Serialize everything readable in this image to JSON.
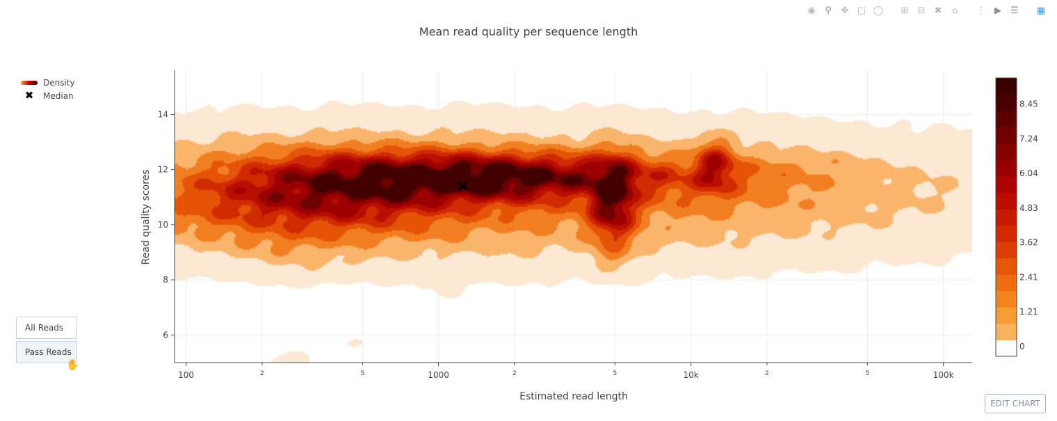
{
  "title": "Mean read quality per sequence length",
  "modebar": {
    "icons": [
      "camera-icon",
      "zoom-icon",
      "pan-icon",
      "box-select-icon",
      "lasso-icon",
      "zoom-in-icon",
      "zoom-out-icon",
      "autoscale-icon",
      "reset-axes-icon",
      "spike-lines-icon",
      "hover-closest-icon",
      "hover-compare-icon",
      "plotly-logo-icon"
    ]
  },
  "legend": {
    "density_label": "Density",
    "median_label": "Median"
  },
  "buttons": {
    "all_reads": "All Reads",
    "pass_reads": "Pass Reads",
    "active": "Pass Reads"
  },
  "edit_chart_label": "EDIT CHART",
  "chart_data": {
    "type": "contour-density",
    "title": "Mean read quality per sequence length",
    "xlabel": "Estimated read length",
    "ylabel": "Read quality scores",
    "x_scale": "log",
    "xlim": [
      90,
      130000
    ],
    "ylim": [
      5,
      15.6
    ],
    "x_major_ticks": [
      {
        "value": 100,
        "label": "100"
      },
      {
        "value": 1000,
        "label": "1000"
      },
      {
        "value": 10000,
        "label": "10k"
      },
      {
        "value": 100000,
        "label": "100k"
      }
    ],
    "x_minor_ticks": [
      {
        "value": 200,
        "label": "2"
      },
      {
        "value": 500,
        "label": "5"
      },
      {
        "value": 2000,
        "label": "2"
      },
      {
        "value": 5000,
        "label": "5"
      },
      {
        "value": 20000,
        "label": "2"
      },
      {
        "value": 50000,
        "label": "5"
      }
    ],
    "y_ticks": [
      6,
      8,
      10,
      12,
      14
    ],
    "grid": true,
    "median": {
      "x": 1250,
      "y": 11.4
    },
    "colorscale": [
      "#ffffff",
      "#f8b35c",
      "#f69c32",
      "#f2851d",
      "#ee6e0f",
      "#e65609",
      "#dc3e05",
      "#d12a02",
      "#c81a00",
      "#bc0d00",
      "#ad0300",
      "#9b0000",
      "#870000",
      "#730000",
      "#5e0000",
      "#4a0000",
      "#3a0000"
    ],
    "colorbar_ticks": [
      0,
      1.21,
      2.41,
      3.62,
      4.83,
      6.04,
      7.24,
      8.45
    ],
    "colorbar_range": [
      0,
      9.7
    ],
    "contour_colors": [
      "#fde9d3",
      "#f8b56b",
      "#f27e22",
      "#e55406",
      "#d02a01",
      "#b80e00",
      "#9c0000",
      "#6e0000",
      "#420000"
    ],
    "blobs": [
      {
        "x": 900,
        "y": 11.1,
        "sx": 1.35,
        "sy": 1.45,
        "w": 1.7
      },
      {
        "x": 320,
        "y": 10.9,
        "sx": 0.32,
        "sy": 0.85,
        "w": 2.6
      },
      {
        "x": 430,
        "y": 11.6,
        "sx": 0.25,
        "sy": 0.7,
        "w": 1.5
      },
      {
        "x": 650,
        "y": 11.7,
        "sx": 0.3,
        "sy": 0.55,
        "w": 1.6
      },
      {
        "x": 1250,
        "y": 11.7,
        "sx": 0.28,
        "sy": 0.55,
        "w": 2.5
      },
      {
        "x": 1700,
        "y": 11.7,
        "sx": 0.3,
        "sy": 0.5,
        "w": 1.6
      },
      {
        "x": 2700,
        "y": 11.8,
        "sx": 0.35,
        "sy": 0.45,
        "w": 1.9
      },
      {
        "x": 4900,
        "y": 10.9,
        "sx": 0.055,
        "sy": 0.95,
        "w": 5.4
      },
      {
        "x": 12500,
        "y": 12.1,
        "sx": 0.05,
        "sy": 0.6,
        "w": 3.0
      },
      {
        "x": 13500,
        "y": 11.8,
        "sx": 0.28,
        "sy": 0.5,
        "w": 0.35
      },
      {
        "x": 3500,
        "y": 11.5,
        "sx": 0.6,
        "sy": 0.6,
        "w": 0.6
      },
      {
        "x": 20000,
        "y": 12.1,
        "sx": 0.12,
        "sy": 0.25,
        "w": 0.2
      },
      {
        "x": 36000,
        "y": 12.3,
        "sx": 0.06,
        "sy": 0.15,
        "w": 0.25
      },
      {
        "x": 4900,
        "y": 8.8,
        "sx": 0.05,
        "sy": 0.4,
        "w": 0.4
      },
      {
        "x": 250,
        "y": 9.1,
        "sx": 0.12,
        "sy": 0.45,
        "w": 0.35
      },
      {
        "x": 300,
        "y": 8.2,
        "sx": 0.07,
        "sy": 0.2,
        "w": 0.2
      },
      {
        "x": 450,
        "y": 8.7,
        "sx": 0.04,
        "sy": 0.12,
        "w": 0.25
      },
      {
        "x": 1100,
        "y": 7.8,
        "sx": 0.03,
        "sy": 0.3,
        "w": 0.25
      },
      {
        "x": 470,
        "y": 5.7,
        "sx": 0.03,
        "sy": 0.12,
        "w": 0.25
      },
      {
        "x": 260,
        "y": 5.0,
        "sx": 0.06,
        "sy": 0.3,
        "w": 0.35
      },
      {
        "x": 11800,
        "y": 9.5,
        "sx": 0.015,
        "sy": 0.05,
        "w": 0.25
      }
    ]
  }
}
